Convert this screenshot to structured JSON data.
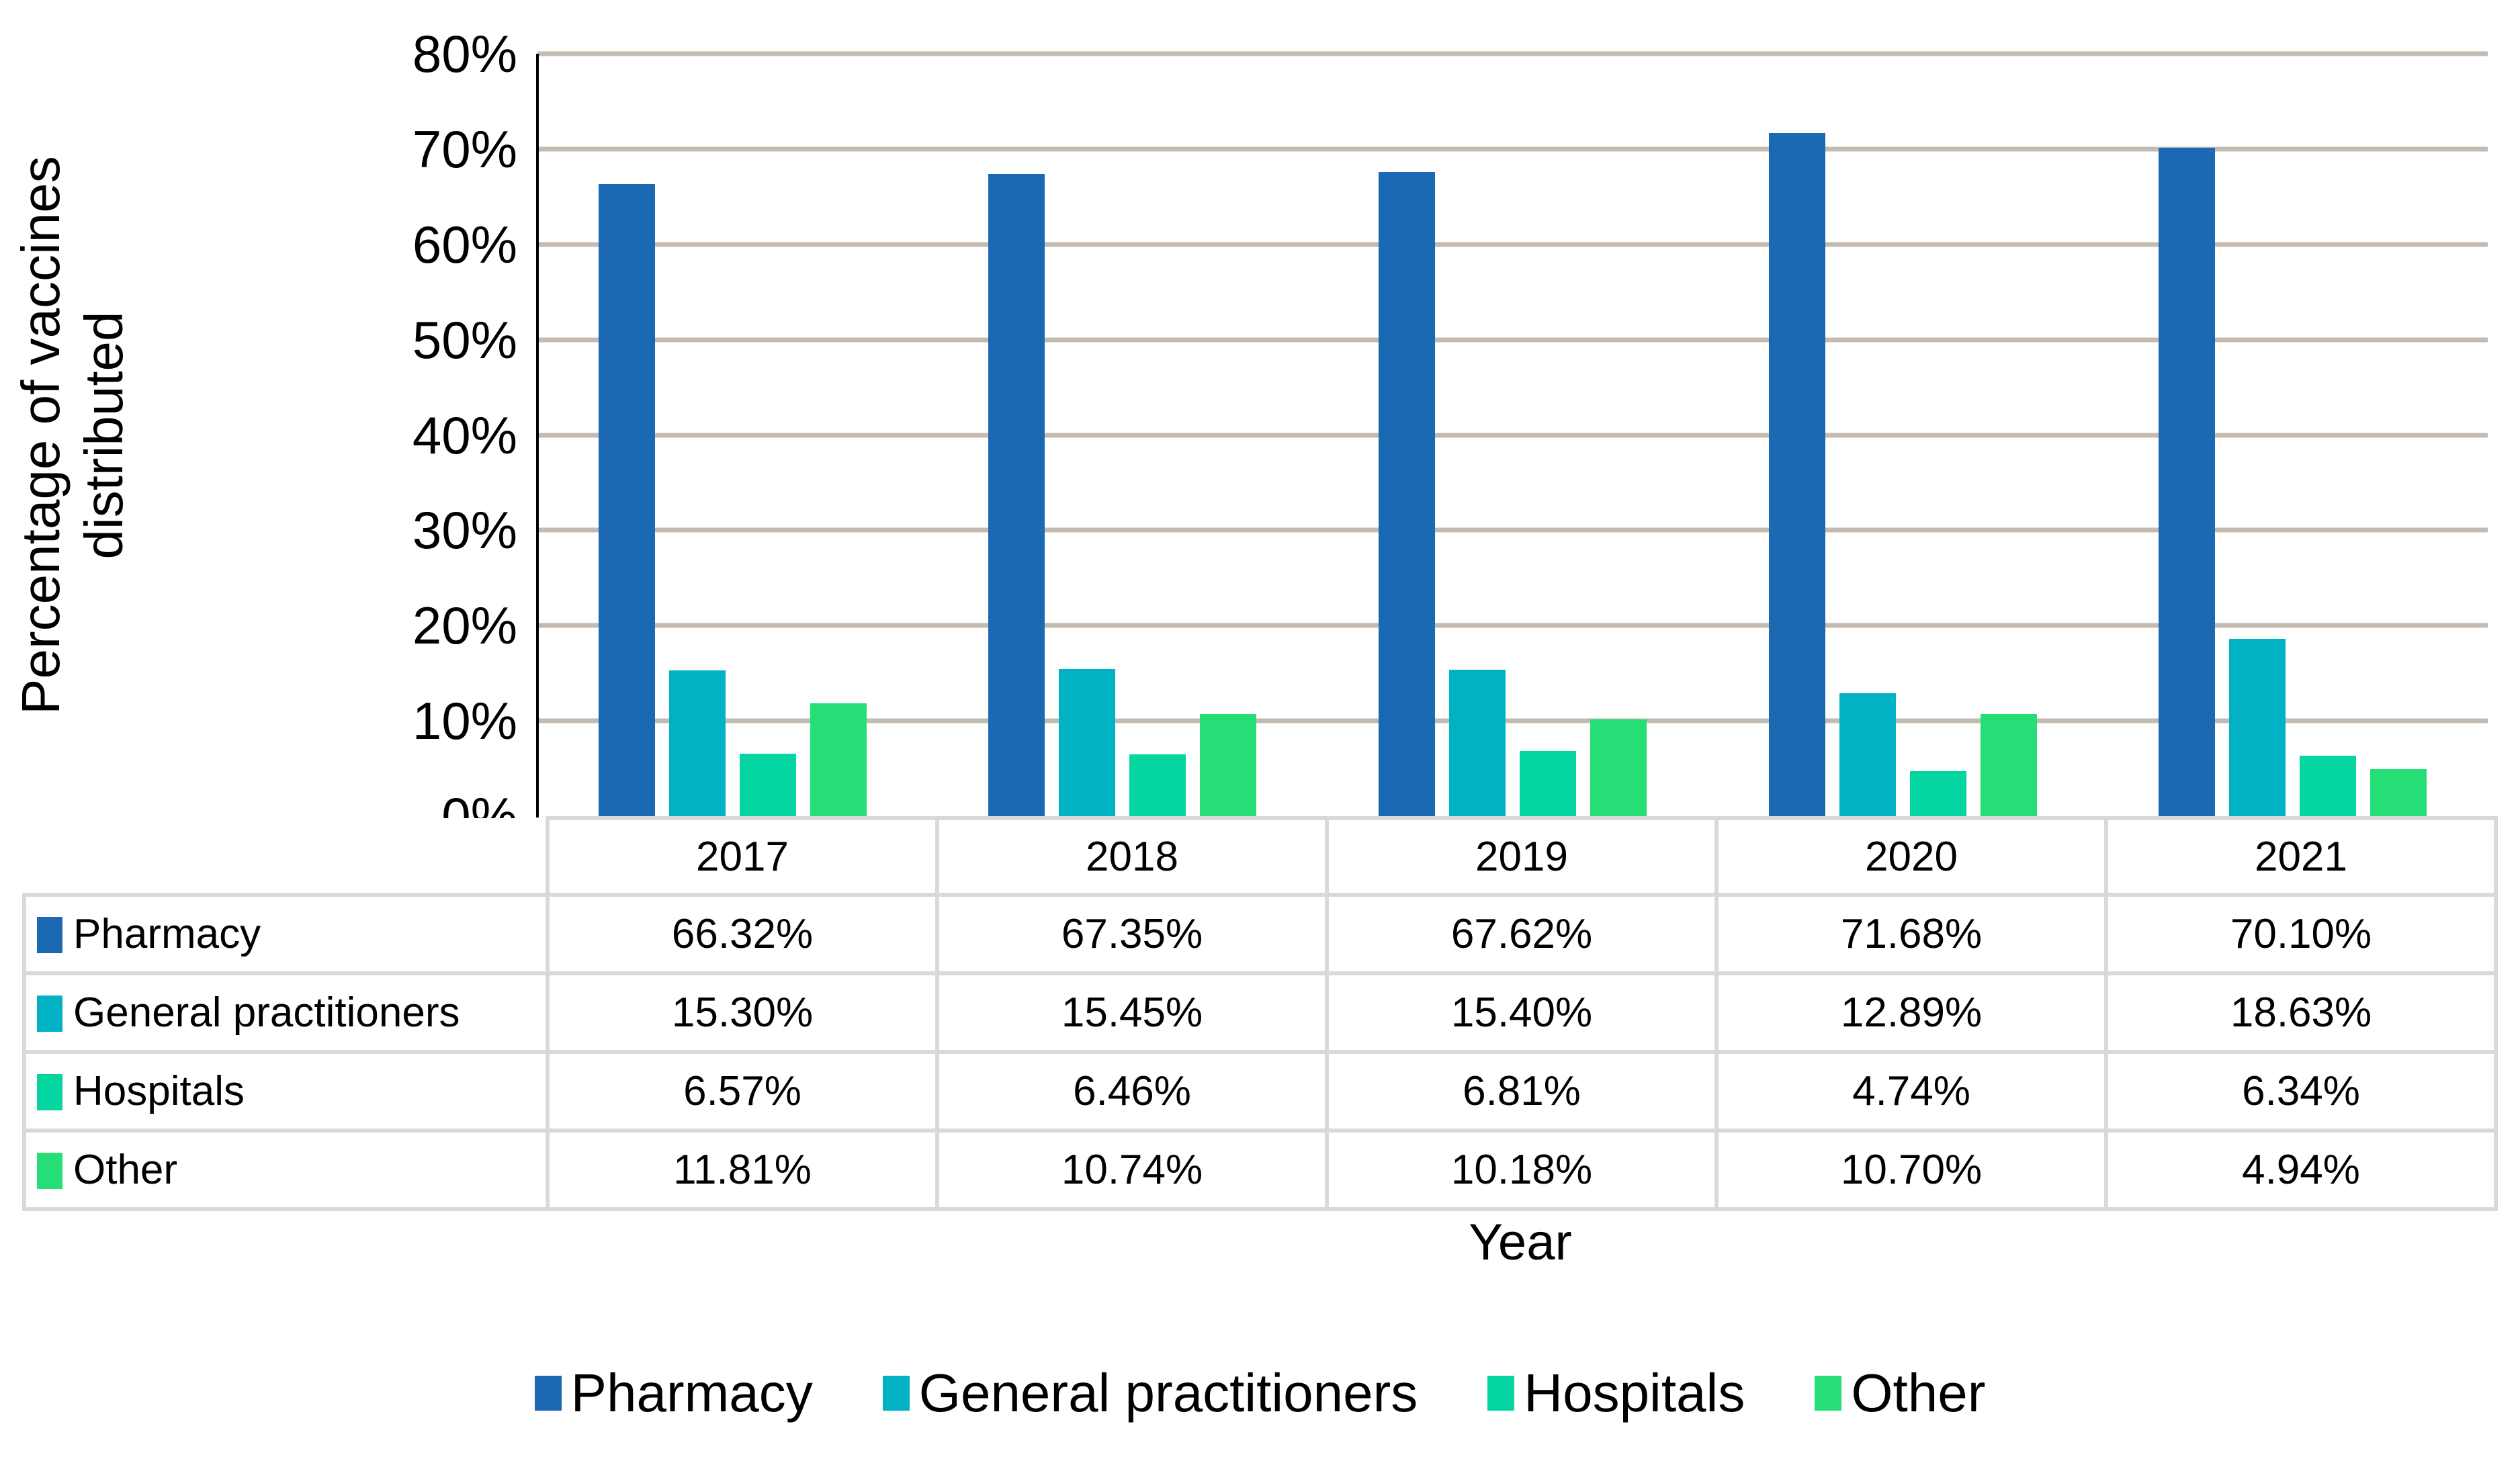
{
  "chart_data": {
    "type": "bar",
    "title": "",
    "categories": [
      "2017",
      "2018",
      "2019",
      "2020",
      "2021"
    ],
    "series": [
      {
        "name": "Pharmacy",
        "color": "#1B69B2",
        "values": [
          66.32,
          67.35,
          67.62,
          71.68,
          70.1
        ]
      },
      {
        "name": "General practitioners",
        "color": "#00B2C3",
        "values": [
          15.3,
          15.45,
          15.4,
          12.89,
          18.63
        ]
      },
      {
        "name": "Hospitals",
        "color": "#05D5A0",
        "values": [
          6.57,
          6.46,
          6.81,
          4.74,
          6.34
        ]
      },
      {
        "name": "Other",
        "color": "#25DE76",
        "values": [
          11.81,
          10.74,
          10.18,
          10.7,
          4.94
        ]
      }
    ],
    "xlabel": "Year",
    "ylabel": "Percentage of vaccines distributed",
    "ylim": [
      0,
      80
    ],
    "ytick_labels": [
      "0%",
      "10%",
      "20%",
      "30%",
      "40%",
      "50%",
      "60%",
      "70%",
      "80%"
    ],
    "grid": true,
    "gridline_color": "#C4BBB0",
    "legend_position": "bottom",
    "table_border_color": "#D9D9D9"
  },
  "axis": {
    "ylabel_line1": "Percentage of vaccines",
    "ylabel_line2": "distributed",
    "xlabel": "Year"
  },
  "table": {
    "col_headers": [
      "2017",
      "2018",
      "2019",
      "2020",
      "2021"
    ],
    "rows": [
      {
        "label": "Pharmacy",
        "values": [
          "66.32%",
          "67.35%",
          "67.62%",
          "71.68%",
          "70.10%"
        ]
      },
      {
        "label": "General practitioners",
        "values": [
          "15.30%",
          "15.45%",
          "15.40%",
          "12.89%",
          "18.63%"
        ]
      },
      {
        "label": "Hospitals",
        "values": [
          "6.57%",
          "6.46%",
          "6.81%",
          "4.74%",
          "6.34%"
        ]
      },
      {
        "label": "Other",
        "values": [
          "11.81%",
          "10.74%",
          "10.18%",
          "10.70%",
          "4.94%"
        ]
      }
    ]
  },
  "legend": {
    "items": [
      {
        "label": "Pharmacy"
      },
      {
        "label": "General practitioners"
      },
      {
        "label": "Hospitals"
      },
      {
        "label": "Other"
      }
    ]
  }
}
